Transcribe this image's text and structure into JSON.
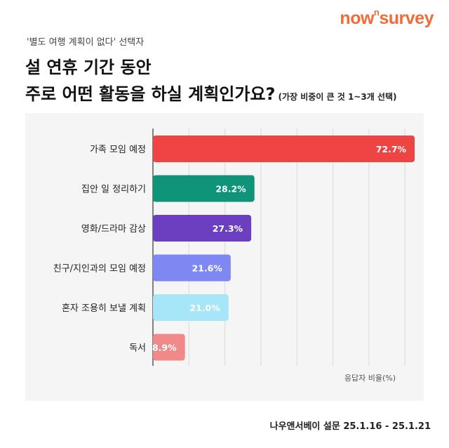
{
  "brand": {
    "logo_main": "now",
    "logo_sup": "n",
    "logo_end": "survey"
  },
  "header": {
    "subtitle": "'별도 여행 계획이 없다' 선택자",
    "title_line1": "설 연휴 기간 동안",
    "title_line2": "주로 어떤 활동을 하실 계획인가요?",
    "title_note": "(가장 비중이 큰 것 1~3개 선택)"
  },
  "footer": {
    "source": "나우앤서베이 설문 25.1.16 - 25.1.21"
  },
  "chart_data": {
    "type": "bar",
    "orientation": "horizontal",
    "categories": [
      "가족 모임 예정",
      "집안 일 정리하기",
      "영화/드라마 감상",
      "친구/지인과의 모임 예정",
      "혼자 조용히 보낼 계획",
      "독서"
    ],
    "values": [
      72.7,
      28.2,
      27.3,
      21.6,
      21.0,
      8.9
    ],
    "value_labels": [
      "72.7%",
      "28.2%",
      "27.3%",
      "21.6%",
      "21.0%",
      "8.9%"
    ],
    "colors": [
      "#ef4444",
      "#0f9479",
      "#6b3fc0",
      "#7f88f2",
      "#a6e6f8",
      "#f08a8a"
    ],
    "xlabel": "응답자 비율(%)",
    "xlim": [
      0,
      76
    ],
    "grid": true
  }
}
